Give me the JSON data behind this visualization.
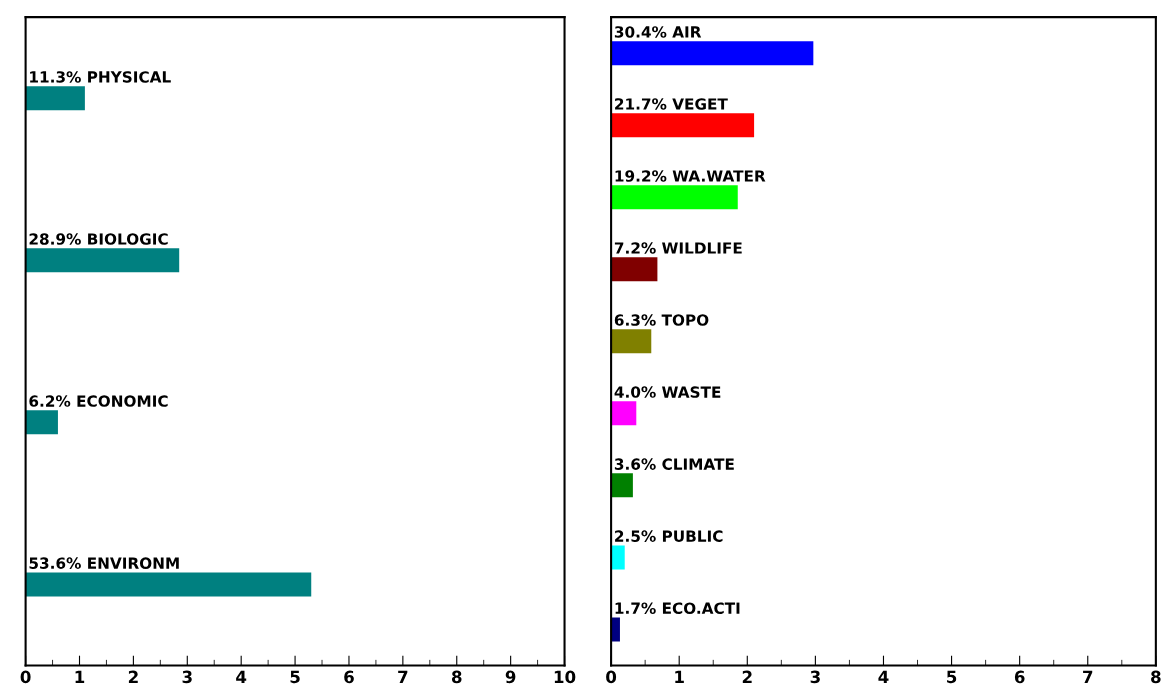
{
  "chart_data": [
    {
      "type": "bar",
      "orientation": "horizontal",
      "categories": [
        "11.3% PHYSICAL",
        "28.9% BIOLOGIC",
        "6.2% ECONOMIC",
        "53.6% ENVIRONM"
      ],
      "values": [
        1.1,
        2.85,
        0.6,
        5.3
      ],
      "color": "#008080",
      "xlim": [
        0,
        10
      ],
      "xticks": [
        0,
        1,
        2,
        3,
        4,
        5,
        6,
        7,
        8,
        9,
        10
      ],
      "tick_labels": "x",
      "grid": false
    },
    {
      "type": "bar",
      "orientation": "horizontal",
      "categories": [
        "30.4% AIR",
        "21.7% VEGET",
        "19.2% WA.WATER",
        "7.2% WILDLIFE",
        "6.3% TOPO",
        "4.0% WASTE",
        "3.6% CLIMATE",
        "2.5% PUBLIC",
        "1.7% ECO.ACTI"
      ],
      "values": [
        2.97,
        2.1,
        1.86,
        0.68,
        0.59,
        0.37,
        0.32,
        0.2,
        0.13
      ],
      "colors": [
        "#0000ff",
        "#ff0000",
        "#00ff00",
        "#800000",
        "#808000",
        "#ff00ff",
        "#008000",
        "#00ffff",
        "#000080"
      ],
      "xlim": [
        0,
        8
      ],
      "xticks": [
        0,
        1,
        2,
        3,
        4,
        5,
        6,
        7,
        8
      ],
      "tick_labels": "x",
      "grid": false
    }
  ]
}
